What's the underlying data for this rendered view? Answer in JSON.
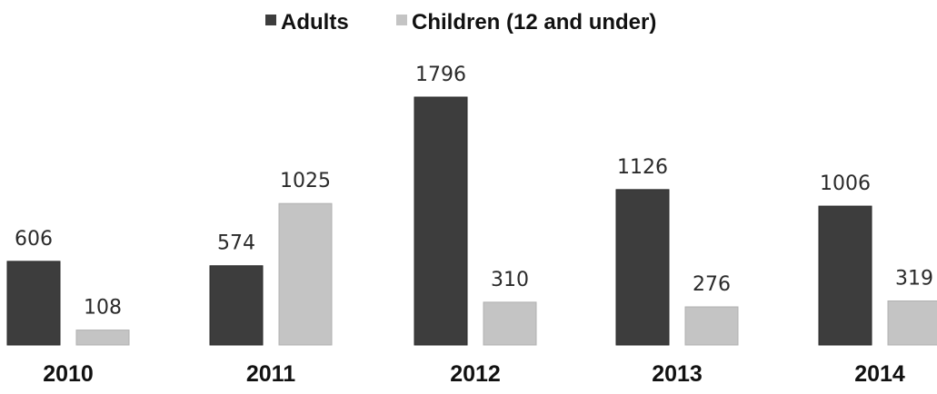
{
  "chart_data": {
    "type": "bar",
    "categories": [
      "2010",
      "2011",
      "2012",
      "2013",
      "2014"
    ],
    "series": [
      {
        "name": "Adults",
        "values": [
          606,
          574,
          1796,
          1126,
          1006
        ],
        "color": "#3d3d3d"
      },
      {
        "name": "Children (12 and under)",
        "values": [
          108,
          1025,
          310,
          276,
          319
        ],
        "color": "#c4c4c4"
      }
    ],
    "title": "",
    "xlabel": "",
    "ylabel": "",
    "ylim": [
      0,
      1800
    ],
    "grid": false,
    "legend_position": "top-center",
    "value_labels": true
  }
}
